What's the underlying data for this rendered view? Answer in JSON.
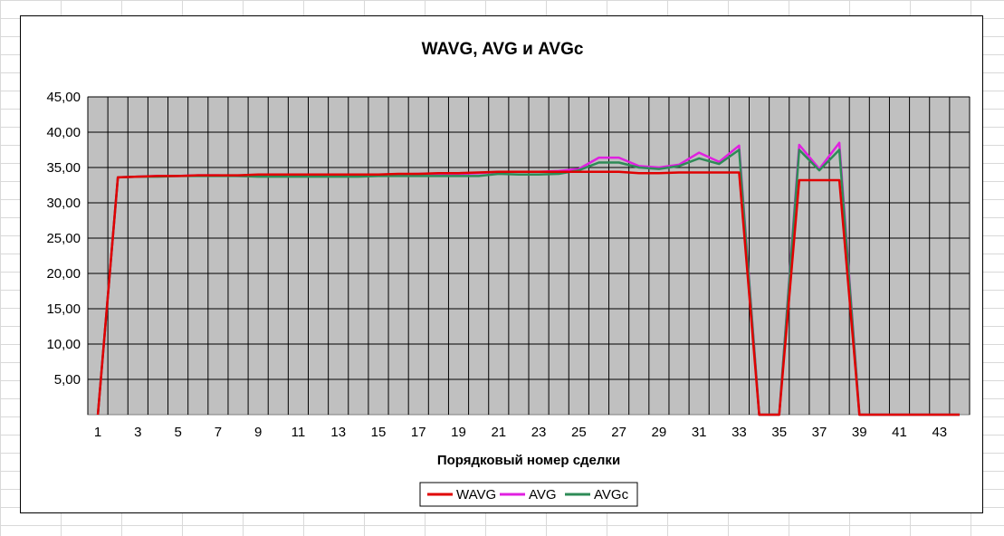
{
  "chart_data": {
    "type": "line",
    "title": "WAVG, AVG и AVGc",
    "xlabel": "Порядковый номер сделки",
    "ylabel": "",
    "ylim": [
      0,
      45
    ],
    "y_ticks": [
      "5,00",
      "10,00",
      "15,00",
      "20,00",
      "25,00",
      "30,00",
      "35,00",
      "40,00",
      "45,00"
    ],
    "y_tick_values": [
      5,
      10,
      15,
      20,
      25,
      30,
      35,
      40,
      45
    ],
    "x": [
      1,
      2,
      3,
      4,
      5,
      6,
      7,
      8,
      9,
      10,
      11,
      12,
      13,
      14,
      15,
      16,
      17,
      18,
      19,
      20,
      21,
      22,
      23,
      24,
      25,
      26,
      27,
      28,
      29,
      30,
      31,
      32,
      33,
      34,
      35,
      36,
      37,
      38,
      39,
      40,
      41,
      42,
      43,
      44
    ],
    "x_tick_labels": [
      "1",
      "3",
      "5",
      "7",
      "9",
      "11",
      "13",
      "15",
      "17",
      "19",
      "21",
      "23",
      "25",
      "27",
      "29",
      "31",
      "33",
      "35",
      "37",
      "39",
      "41",
      "43"
    ],
    "x_tick_values": [
      1,
      3,
      5,
      7,
      9,
      11,
      13,
      15,
      17,
      19,
      21,
      23,
      25,
      27,
      29,
      31,
      33,
      35,
      37,
      39,
      41,
      43
    ],
    "plot_background": "#c0c0c0",
    "grid": true,
    "legend_position": "bottom",
    "series": [
      {
        "name": "WAVG",
        "color": "#e00000",
        "values": [
          0,
          33.6,
          33.7,
          33.8,
          33.8,
          33.9,
          33.9,
          33.9,
          34.0,
          34.0,
          34.0,
          34.0,
          34.0,
          34.0,
          34.0,
          34.1,
          34.1,
          34.2,
          34.2,
          34.3,
          34.4,
          34.4,
          34.4,
          34.4,
          34.4,
          34.4,
          34.4,
          34.2,
          34.2,
          34.3,
          34.3,
          34.3,
          34.3,
          0,
          0,
          33.2,
          33.2,
          33.2,
          0,
          0,
          0,
          0,
          0,
          0
        ]
      },
      {
        "name": "AVG",
        "color": "#e020e0",
        "values": [
          0,
          33.6,
          33.7,
          33.8,
          33.8,
          33.9,
          33.9,
          33.8,
          33.8,
          33.8,
          33.9,
          33.9,
          33.9,
          33.9,
          34.0,
          34.0,
          34.1,
          34.1,
          34.1,
          34.2,
          34.4,
          34.4,
          34.4,
          34.5,
          34.8,
          36.4,
          36.4,
          35.2,
          35.0,
          35.4,
          37.1,
          35.8,
          38.1,
          0,
          0,
          38.2,
          34.8,
          38.5,
          0,
          0,
          0,
          0,
          0,
          0
        ]
      },
      {
        "name": "AVGc",
        "color": "#2e8b57",
        "values": [
          0,
          33.6,
          33.7,
          33.7,
          33.8,
          33.8,
          33.8,
          33.8,
          33.7,
          33.7,
          33.7,
          33.7,
          33.7,
          33.7,
          33.8,
          33.8,
          33.8,
          33.8,
          33.8,
          33.8,
          34.1,
          34.0,
          34.0,
          34.1,
          34.6,
          35.7,
          35.7,
          35.0,
          34.8,
          35.2,
          36.3,
          35.5,
          37.5,
          0,
          0,
          37.5,
          34.6,
          37.5,
          0,
          0,
          0,
          0,
          0,
          0
        ]
      }
    ]
  }
}
